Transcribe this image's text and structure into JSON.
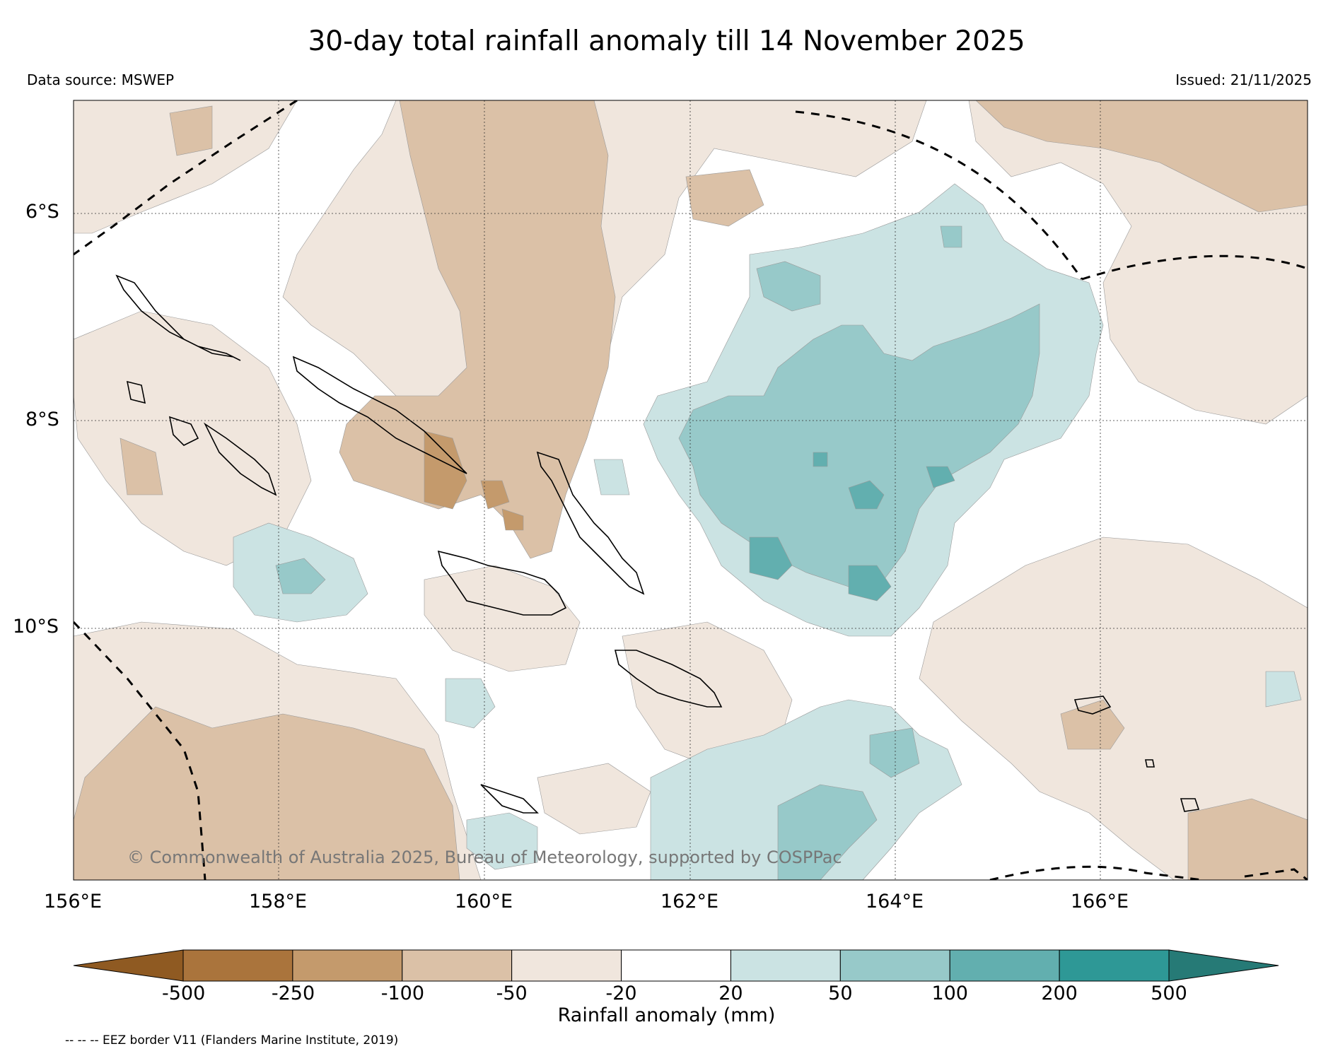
{
  "title": "30-day total rainfall anomaly till 14 November 2025",
  "data_source": "Data source: MSWEP",
  "issued": "Issued: 21/11/2025",
  "copyright": "© Commonwealth of Australia 2025, Bureau of Meteorology, supported by COSPPac",
  "lat_labels": [
    "6°S",
    "8°S",
    "10°S"
  ],
  "lon_labels": [
    "156°E",
    "158°E",
    "160°E",
    "162°E",
    "164°E",
    "166°E"
  ],
  "colorbar": {
    "title": "Rainfall anomaly (mm)",
    "ticks": [
      "-500",
      "-250",
      "-100",
      "-50",
      "-20",
      "20",
      "50",
      "100",
      "200",
      "500"
    ],
    "colors": [
      "#8f5a22",
      "#aa743c",
      "#c49a6c",
      "#dbc1a7",
      "#f0e6dd",
      "#ffffff",
      "#cbe3e3",
      "#97c9c9",
      "#62afaf",
      "#2e9896",
      "#267a76"
    ]
  },
  "footnote": "-- -- -- EEZ border V11 (Flanders Marine Institute, 2019)"
}
